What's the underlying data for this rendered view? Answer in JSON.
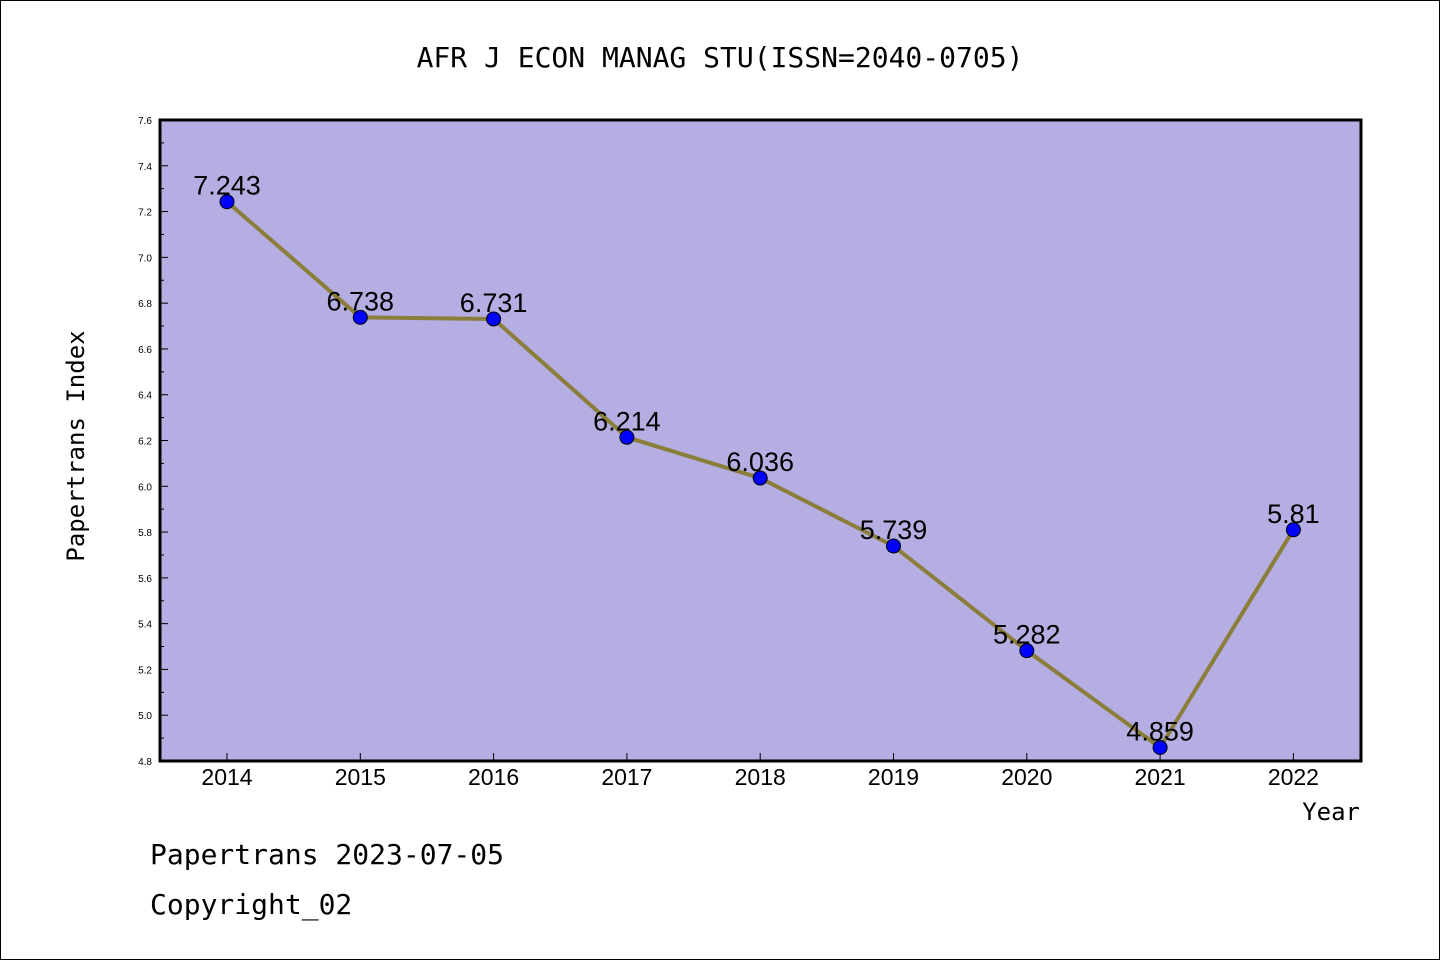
{
  "chart_data": {
    "type": "line",
    "title": "AFR J ECON MANAG STU(ISSN=2040-0705)",
    "xlabel": "Year",
    "ylabel": "Papertrans Index",
    "categories": [
      "2014",
      "2015",
      "2016",
      "2017",
      "2018",
      "2019",
      "2020",
      "2021",
      "2022"
    ],
    "series": [
      {
        "values": [
          7.243,
          6.738,
          6.731,
          6.214,
          6.036,
          5.739,
          5.282,
          4.859,
          5.81
        ],
        "data_labels": [
          "7.243",
          "6.738",
          "6.731",
          "6.214",
          "6.036",
          "5.739",
          "5.282",
          "4.859",
          "5.81"
        ],
        "line_color": "#8b7d3a",
        "marker_color": "#0000ff"
      }
    ],
    "ylim": [
      4.8,
      7.6
    ],
    "yticks": [
      "4.8",
      "5.0",
      "5.2",
      "5.4",
      "5.6",
      "5.8",
      "6.0",
      "6.2",
      "6.4",
      "6.6",
      "6.8",
      "7.0",
      "7.2",
      "7.4",
      "7.6"
    ],
    "plot_background": "#b4aee2",
    "grid": false,
    "legend": false
  },
  "footer": {
    "line1": "Papertrans 2023-07-05",
    "line2": "Copyright_02"
  }
}
